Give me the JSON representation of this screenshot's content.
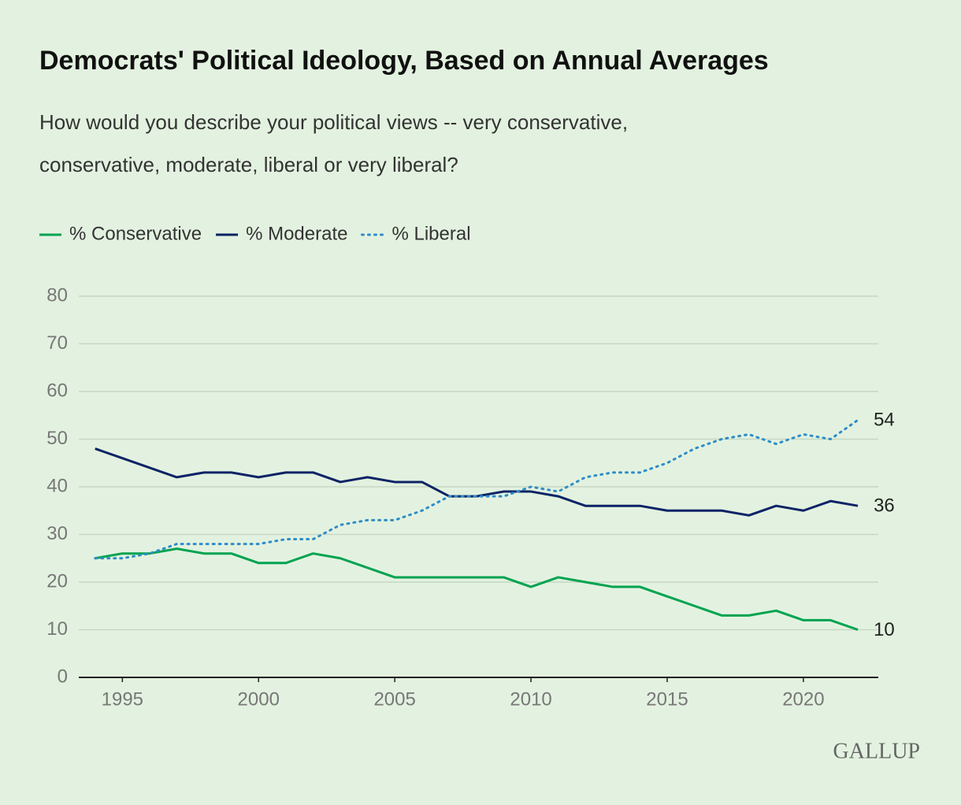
{
  "chart_data": {
    "type": "line",
    "title": "Democrats' Political Ideology, Based on Annual Averages",
    "subtitle": [
      "How would you describe your political views -- very conservative,",
      "conservative, moderate, liberal or very liberal?"
    ],
    "x": [
      1994,
      1995,
      1996,
      1997,
      1998,
      1999,
      2000,
      2001,
      2002,
      2003,
      2004,
      2005,
      2006,
      2007,
      2008,
      2009,
      2010,
      2011,
      2012,
      2013,
      2014,
      2015,
      2016,
      2017,
      2018,
      2019,
      2020,
      2021,
      2022
    ],
    "series": [
      {
        "name": "% Conservative",
        "color": "#00a350",
        "dash": "solid",
        "values": [
          25,
          26,
          26,
          27,
          26,
          26,
          24,
          24,
          26,
          25,
          23,
          21,
          21,
          21,
          21,
          21,
          19,
          21,
          20,
          19,
          19,
          17,
          15,
          13,
          13,
          14,
          12,
          12,
          10
        ]
      },
      {
        "name": "% Moderate",
        "color": "#0d2366",
        "dash": "solid",
        "values": [
          48,
          46,
          44,
          42,
          43,
          43,
          42,
          43,
          43,
          41,
          42,
          41,
          41,
          38,
          38,
          39,
          39,
          38,
          36,
          36,
          36,
          35,
          35,
          35,
          34,
          36,
          35,
          37,
          36
        ]
      },
      {
        "name": "% Liberal",
        "color": "#2f8dc7",
        "dash": "dotted",
        "values": [
          25,
          25,
          26,
          28,
          28,
          28,
          28,
          29,
          29,
          32,
          33,
          33,
          35,
          38,
          38,
          38,
          40,
          39,
          42,
          43,
          43,
          45,
          48,
          50,
          51,
          49,
          51,
          50,
          54
        ]
      }
    ],
    "xlim": [
      1993.4,
      2022.75
    ],
    "xticks": [
      1995,
      2000,
      2005,
      2010,
      2015,
      2020
    ],
    "ylim": [
      0,
      80
    ],
    "yticks": [
      0,
      10,
      20,
      30,
      40,
      50,
      60,
      70,
      80
    ],
    "grid": true,
    "legend": "top-left",
    "source": "GALLUP"
  }
}
